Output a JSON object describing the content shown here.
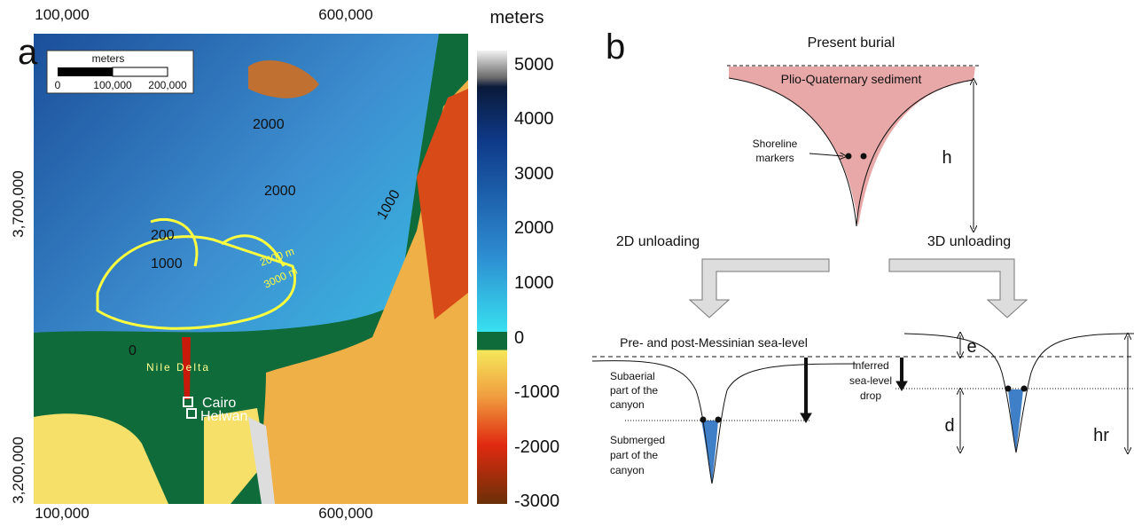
{
  "panel_a": {
    "label": "a",
    "x_axis_top": [
      "100,000",
      "600,000"
    ],
    "x_axis_bottom": [
      "100,000",
      "600,000"
    ],
    "y_axis": [
      "3,700,000",
      "3,200,000"
    ],
    "colorbar_title": "meters",
    "colorbar_ticks": [
      "5000",
      "4000",
      "3000",
      "2000",
      "1000",
      "0",
      "-1000",
      "-2000",
      "-3000"
    ],
    "scale_bar": {
      "title": "meters",
      "labels": [
        "0",
        "100,000",
        "200,000"
      ]
    },
    "contour_labels": [
      "2000",
      "2000",
      "1000",
      "200",
      "1000",
      "0"
    ],
    "isopach_labels": [
      "2000 m",
      "3000 m"
    ],
    "place_labels": [
      "Nile Delta",
      "Cairo",
      "Helwan"
    ]
  },
  "panel_b": {
    "label": "b",
    "present_burial": "Present burial",
    "sediment": "Plio-Quaternary sediment",
    "shoreline_markers": [
      "Shoreline",
      "markers"
    ],
    "h": "h",
    "unloading_2d": "2D unloading",
    "unloading_3d": "3D unloading",
    "sea_level": "Pre- and post-Messinian sea-level",
    "subaerial": [
      "Subaerial",
      "part of the",
      "canyon"
    ],
    "submerged": [
      "Submerged",
      "part of the",
      "canyon"
    ],
    "inferred_drop": [
      "Inferred",
      "sea-level",
      "drop"
    ],
    "e": "e",
    "d": "d",
    "hr": "hr"
  }
}
